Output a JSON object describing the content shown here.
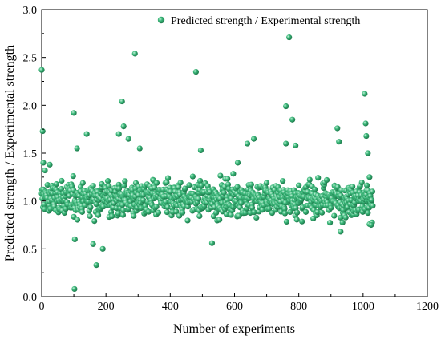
{
  "chart_data": {
    "type": "scatter",
    "title": "",
    "xlabel": "Number of experiments",
    "ylabel": "Predicted strength / Experimental strength",
    "xlim": [
      0,
      1200
    ],
    "ylim": [
      0.0,
      3.0
    ],
    "x_ticks": [
      "0",
      "200",
      "400",
      "600",
      "800",
      "1000",
      "1200"
    ],
    "y_ticks": [
      "0.0",
      "0.5",
      "1.0",
      "1.5",
      "2.0",
      "2.5",
      "3.0"
    ],
    "grid": false,
    "legend": {
      "placement": "top-right",
      "entries": [
        "Predicted strength / Experimental strength"
      ]
    },
    "marker_color": "#3bb87a",
    "series": [
      {
        "name": "Predicted strength / Experimental strength",
        "point_count": 1030,
        "typical_range": [
          0.7,
          1.35
        ],
        "points": [
          [
            0,
            2.37
          ],
          [
            3,
            1.73
          ],
          [
            5,
            1.4
          ],
          [
            10,
            1.32
          ],
          [
            25,
            1.38
          ],
          [
            100,
            1.92
          ],
          [
            102,
            0.08
          ],
          [
            103,
            0.6
          ],
          [
            110,
            1.55
          ],
          [
            140,
            1.7
          ],
          [
            160,
            0.55
          ],
          [
            170,
            0.33
          ],
          [
            190,
            0.5
          ],
          [
            240,
            1.7
          ],
          [
            250,
            2.04
          ],
          [
            255,
            1.78
          ],
          [
            270,
            1.65
          ],
          [
            290,
            2.54
          ],
          [
            305,
            1.55
          ],
          [
            480,
            2.35
          ],
          [
            495,
            1.53
          ],
          [
            530,
            0.56
          ],
          [
            610,
            1.4
          ],
          [
            640,
            1.6
          ],
          [
            660,
            1.65
          ],
          [
            760,
            1.99
          ],
          [
            770,
            2.71
          ],
          [
            780,
            1.85
          ],
          [
            760,
            1.6
          ],
          [
            790,
            1.58
          ],
          [
            920,
            1.76
          ],
          [
            925,
            1.62
          ],
          [
            930,
            0.68
          ],
          [
            1005,
            2.12
          ],
          [
            1008,
            1.81
          ],
          [
            1010,
            1.68
          ],
          [
            1015,
            1.5
          ],
          [
            1020,
            1.25
          ],
          [
            1025,
            0.75
          ],
          [
            1030,
            0.95
          ]
        ]
      }
    ]
  }
}
